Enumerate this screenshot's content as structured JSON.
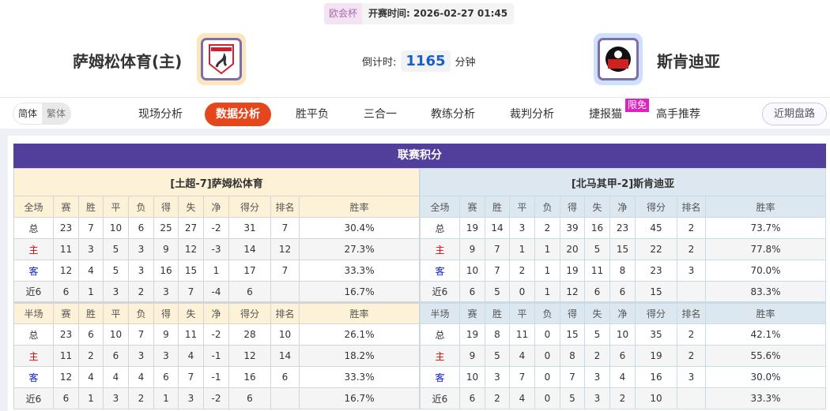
{
  "match": {
    "league": "欧会杯",
    "kickoff": "开赛时间: 2026-02-27 01:45",
    "home_name": "萨姆松体育(主)",
    "away_name": "斯肯迪亚",
    "countdown_label": "倒计时:",
    "countdown_value": "1165",
    "countdown_unit": "分钟"
  },
  "nav": {
    "lang": [
      "简体",
      "繁体"
    ],
    "tabs": [
      "现场分析",
      "数据分析",
      "胜平负",
      "三合一",
      "教练分析",
      "裁判分析",
      "捷报猫",
      "高手推荐"
    ],
    "active_tab": "数据分析",
    "free_badge": "限免",
    "recent": "近期盘路"
  },
  "section_title": "联赛积分",
  "columns_full": [
    "全场",
    "赛",
    "胜",
    "平",
    "负",
    "得",
    "失",
    "净",
    "得分",
    "排名",
    "胜率"
  ],
  "columns_half": [
    "半场",
    "赛",
    "胜",
    "平",
    "负",
    "得",
    "失",
    "净",
    "得分",
    "排名",
    "胜率"
  ],
  "colors": {
    "title_bg": "#523f9b",
    "active_tab": "#e5461c",
    "home_header": "#fdf1d8",
    "away_header": "#dce7ef",
    "home_label": "#e00000",
    "away_label": "#1020d0"
  },
  "home": {
    "header": "[土超-7]萨姆松体育",
    "full": [
      [
        "总",
        "23",
        "7",
        "10",
        "6",
        "25",
        "27",
        "-2",
        "31",
        "7",
        "30.4%"
      ],
      [
        "主",
        "11",
        "3",
        "5",
        "3",
        "9",
        "12",
        "-3",
        "14",
        "12",
        "27.3%"
      ],
      [
        "客",
        "12",
        "4",
        "5",
        "3",
        "16",
        "15",
        "1",
        "17",
        "7",
        "33.3%"
      ],
      [
        "近6",
        "6",
        "1",
        "3",
        "2",
        "3",
        "7",
        "-4",
        "6",
        "",
        "16.7%"
      ]
    ],
    "half": [
      [
        "总",
        "23",
        "6",
        "10",
        "7",
        "9",
        "11",
        "-2",
        "28",
        "10",
        "26.1%"
      ],
      [
        "主",
        "11",
        "2",
        "6",
        "3",
        "3",
        "4",
        "-1",
        "12",
        "14",
        "18.2%"
      ],
      [
        "客",
        "12",
        "4",
        "4",
        "4",
        "6",
        "7",
        "-1",
        "16",
        "6",
        "33.3%"
      ],
      [
        "近6",
        "6",
        "1",
        "3",
        "2",
        "1",
        "3",
        "-2",
        "6",
        "",
        "16.7%"
      ]
    ]
  },
  "away": {
    "header": "[北马其甲-2]斯肯迪亚",
    "full": [
      [
        "总",
        "19",
        "14",
        "3",
        "2",
        "39",
        "16",
        "23",
        "45",
        "2",
        "73.7%"
      ],
      [
        "主",
        "9",
        "7",
        "1",
        "1",
        "20",
        "5",
        "15",
        "22",
        "2",
        "77.8%"
      ],
      [
        "客",
        "10",
        "7",
        "2",
        "1",
        "19",
        "11",
        "8",
        "23",
        "3",
        "70.0%"
      ],
      [
        "近6",
        "6",
        "5",
        "0",
        "1",
        "12",
        "6",
        "6",
        "15",
        "",
        "83.3%"
      ]
    ],
    "half": [
      [
        "总",
        "19",
        "8",
        "11",
        "0",
        "15",
        "5",
        "10",
        "35",
        "2",
        "42.1%"
      ],
      [
        "主",
        "9",
        "5",
        "4",
        "0",
        "8",
        "2",
        "6",
        "19",
        "2",
        "55.6%"
      ],
      [
        "客",
        "10",
        "3",
        "7",
        "0",
        "7",
        "3",
        "4",
        "16",
        "3",
        "30.0%"
      ],
      [
        "近6",
        "6",
        "2",
        "4",
        "0",
        "5",
        "3",
        "2",
        "10",
        "",
        "33.3%"
      ]
    ]
  }
}
